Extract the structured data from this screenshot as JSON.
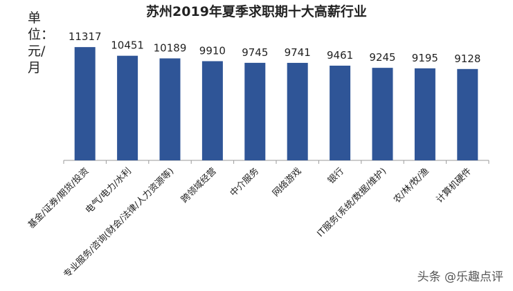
{
  "chart_data": {
    "type": "bar",
    "title": "苏州2019年夏季求职期十大高薪行业",
    "ylabel": "单位：元/月",
    "categories": [
      "基金/证券/期货/投资",
      "电气/电力/水利",
      "专业服务/咨询(财会/法律/人力资源等)",
      "跨领域经营",
      "中介服务",
      "网络游戏",
      "银行",
      "IT服务(系统/数据/维护)",
      "农/林/牧/渔",
      "计算机硬件"
    ],
    "values": [
      11317,
      10451,
      10189,
      9910,
      9745,
      9741,
      9461,
      9245,
      9195,
      9128
    ],
    "value_labels": [
      "11317",
      "10451",
      "10189",
      "9910",
      "9745",
      "9741",
      "9461",
      "9245",
      "9195",
      "9128"
    ],
    "ylim": [
      0,
      12500
    ],
    "bar_color": "#2f5597",
    "grid": false,
    "legend": "none"
  },
  "watermark": "头条 @乐趣点评"
}
